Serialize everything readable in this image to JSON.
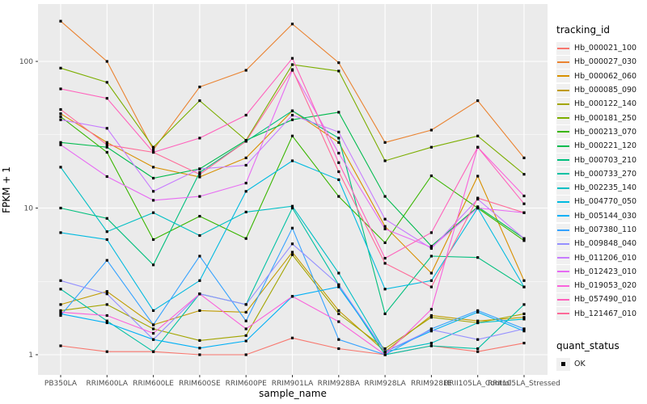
{
  "figure": {
    "background": "#FFFFFF",
    "panel_background": "#EBEBEB",
    "gridline_color": "#FFFFFF",
    "tick_label_color": "#4D4D4D",
    "point_color": "#000000"
  },
  "legend": {
    "tracking_title": "tracking_id",
    "quant_title": "quant_status",
    "quant_items": [
      {
        "label": "OK",
        "marker": "black-square"
      }
    ]
  },
  "chart_data": {
    "type": "line",
    "title": "",
    "xlabel": "sample_name",
    "ylabel": "FPKM + 1",
    "y_scale": "log10",
    "ylim": [
      0.75,
      245
    ],
    "y_ticks": [
      1,
      10,
      100
    ],
    "grid": "on",
    "legend_position": "right",
    "point_marker": "black-square",
    "x_categories": [
      "PB350LA",
      "RRIM600LA",
      "RRIM600LE",
      "RRIM600SE",
      "RRIM600PE",
      "RRIM901LA",
      "RRIM928BA",
      "RRIM928LA",
      "RRIM928LE",
      "RRII105LA_Control",
      "RRII105LA_Stressed"
    ],
    "series": [
      {
        "name": "Hb_000021_100",
        "color": "#F8766D",
        "values": [
          1.15,
          1.05,
          1.05,
          1.0,
          1.0,
          1.3,
          1.1,
          1.0,
          1.15,
          1.05,
          1.2
        ]
      },
      {
        "name": "Hb_000027_030",
        "color": "#EA8331",
        "values": [
          188,
          100,
          25,
          67,
          87,
          180,
          98,
          28,
          34,
          54,
          22
        ]
      },
      {
        "name": "Hb_000062_060",
        "color": "#D89000",
        "values": [
          44,
          28,
          19,
          16.3,
          22,
          46,
          28,
          7.5,
          3.6,
          16.5,
          3.2
        ]
      },
      {
        "name": "Hb_000085_090",
        "color": "#C09B00",
        "values": [
          2.2,
          2.7,
          1.6,
          2.0,
          1.95,
          5.0,
          2.0,
          1.05,
          1.85,
          1.7,
          1.8
        ]
      },
      {
        "name": "Hb_000122_140",
        "color": "#A3A500",
        "values": [
          2.0,
          2.2,
          1.5,
          1.25,
          1.35,
          4.8,
          1.9,
          1.1,
          1.8,
          1.65,
          1.9
        ]
      },
      {
        "name": "Hb_000181_250",
        "color": "#7CAE00",
        "values": [
          90,
          72,
          26,
          54,
          29,
          95,
          86,
          21,
          26,
          31,
          17
        ]
      },
      {
        "name": "Hb_000213_070",
        "color": "#39B600",
        "values": [
          42,
          24,
          6.1,
          8.8,
          6.2,
          31,
          12,
          5.8,
          16.6,
          10,
          6.0
        ]
      },
      {
        "name": "Hb_000221_120",
        "color": "#00BB4E",
        "values": [
          28,
          26,
          16,
          18.5,
          29,
          40,
          45,
          12,
          5.5,
          10.2,
          6.2
        ]
      },
      {
        "name": "Hb_000703_210",
        "color": "#00BF7D",
        "values": [
          10,
          8.5,
          4.1,
          17.5,
          28.5,
          46,
          30,
          1.9,
          4.7,
          4.6,
          2.9
        ]
      },
      {
        "name": "Hb_000733_270",
        "color": "#00C1A3",
        "values": [
          2.8,
          1.7,
          1.05,
          2.6,
          2.2,
          10,
          3.0,
          1.0,
          1.15,
          1.1,
          2.2
        ]
      },
      {
        "name": "Hb_002235_140",
        "color": "#00BFC4",
        "values": [
          19,
          6.9,
          9.3,
          6.5,
          9.4,
          10.3,
          3.6,
          1.05,
          1.2,
          1.65,
          1.75
        ]
      },
      {
        "name": "Hb_004770_050",
        "color": "#00BAE0",
        "values": [
          6.8,
          6.1,
          2.0,
          3.2,
          13,
          21,
          15.6,
          2.8,
          3.2,
          10,
          2.9
        ]
      },
      {
        "name": "Hb_005144_030",
        "color": "#00B0F6",
        "values": [
          1.9,
          1.65,
          1.27,
          1.11,
          1.24,
          2.5,
          2.9,
          1.05,
          1.45,
          1.95,
          1.45
        ]
      },
      {
        "name": "Hb_007380_110",
        "color": "#35A2FF",
        "values": [
          1.85,
          4.4,
          1.6,
          4.7,
          1.7,
          7.3,
          1.27,
          1.0,
          1.5,
          2.0,
          1.5
        ]
      },
      {
        "name": "Hb_009848_040",
        "color": "#9590FF",
        "values": [
          3.2,
          2.6,
          1.27,
          2.6,
          2.2,
          5.7,
          3.0,
          1.05,
          1.48,
          1.27,
          1.5
        ]
      },
      {
        "name": "Hb_011206_010",
        "color": "#C77CFF",
        "values": [
          40,
          35,
          13,
          18.5,
          19.6,
          43,
          33,
          8.4,
          5.3,
          11.5,
          6.2
        ]
      },
      {
        "name": "Hb_012423_010",
        "color": "#E76BF3",
        "values": [
          27,
          16.4,
          11.3,
          12,
          14.8,
          87,
          23.7,
          7.2,
          5.4,
          10,
          9.3
        ]
      },
      {
        "name": "Hb_019053_020",
        "color": "#FA62DB",
        "values": [
          1.95,
          1.85,
          1.4,
          2.6,
          1.5,
          2.5,
          1.68,
          1.0,
          2.04,
          26,
          12.1
        ]
      },
      {
        "name": "Hb_057490_010",
        "color": "#FF62BC",
        "values": [
          65,
          56,
          24,
          30,
          43,
          105,
          20.4,
          4.55,
          6.8,
          26,
          10.7
        ]
      },
      {
        "name": "Hb_121467_010",
        "color": "#FF6A98",
        "values": [
          47,
          27,
          24,
          17,
          28.5,
          88,
          17.7,
          4.2,
          2.9,
          11.7,
          9.3
        ]
      }
    ]
  }
}
